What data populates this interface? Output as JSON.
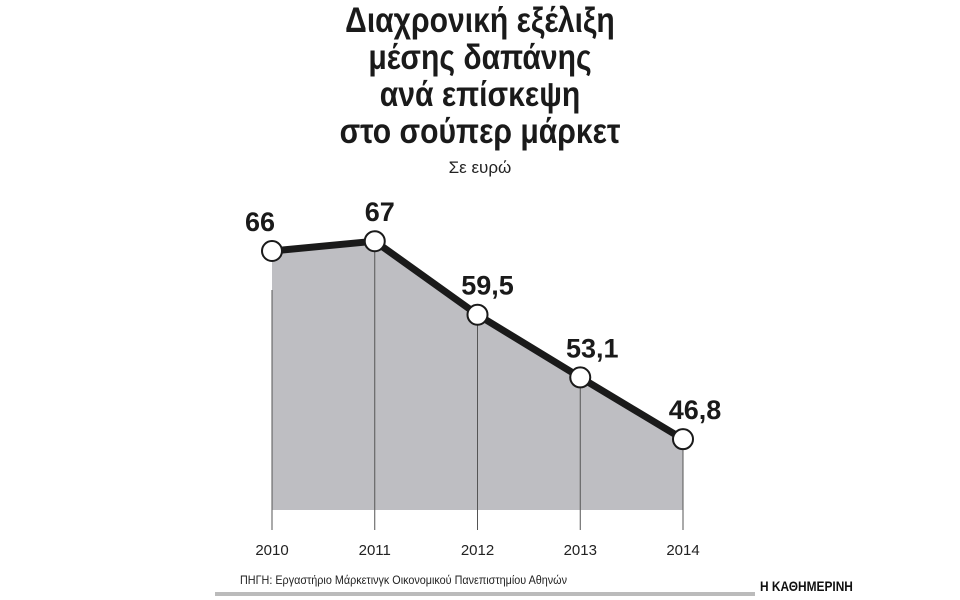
{
  "chart_data": {
    "type": "area",
    "title": [
      "Διαχρονική εξέλιξη",
      "μέσης δαπάνης",
      "ανά επίσκεψη",
      "στο σούπερ μάρκετ"
    ],
    "subtitle": "Σε ευρώ",
    "categories": [
      "2010",
      "2011",
      "2012",
      "2013",
      "2014"
    ],
    "values": [
      66,
      67,
      59.5,
      53.1,
      46.8
    ],
    "data_labels": [
      "66",
      "67",
      "59,5",
      "53,1",
      "46,8"
    ],
    "xlabel": "",
    "ylabel": "",
    "ylim": [
      39.6,
      70
    ],
    "grid": "vertical lines at each year",
    "colors": {
      "line": "#1a1a1a",
      "fill": "#bebec2",
      "marker_fill": "#ffffff"
    }
  },
  "footer": {
    "source": "ΠΗΓΗ: Εργαστήριο Μάρκετινγκ Οικονομικού Πανεπιστημίου Αθηνών",
    "publisher": "Η ΚΑΘΗΜΕΡΙΝΗ"
  }
}
